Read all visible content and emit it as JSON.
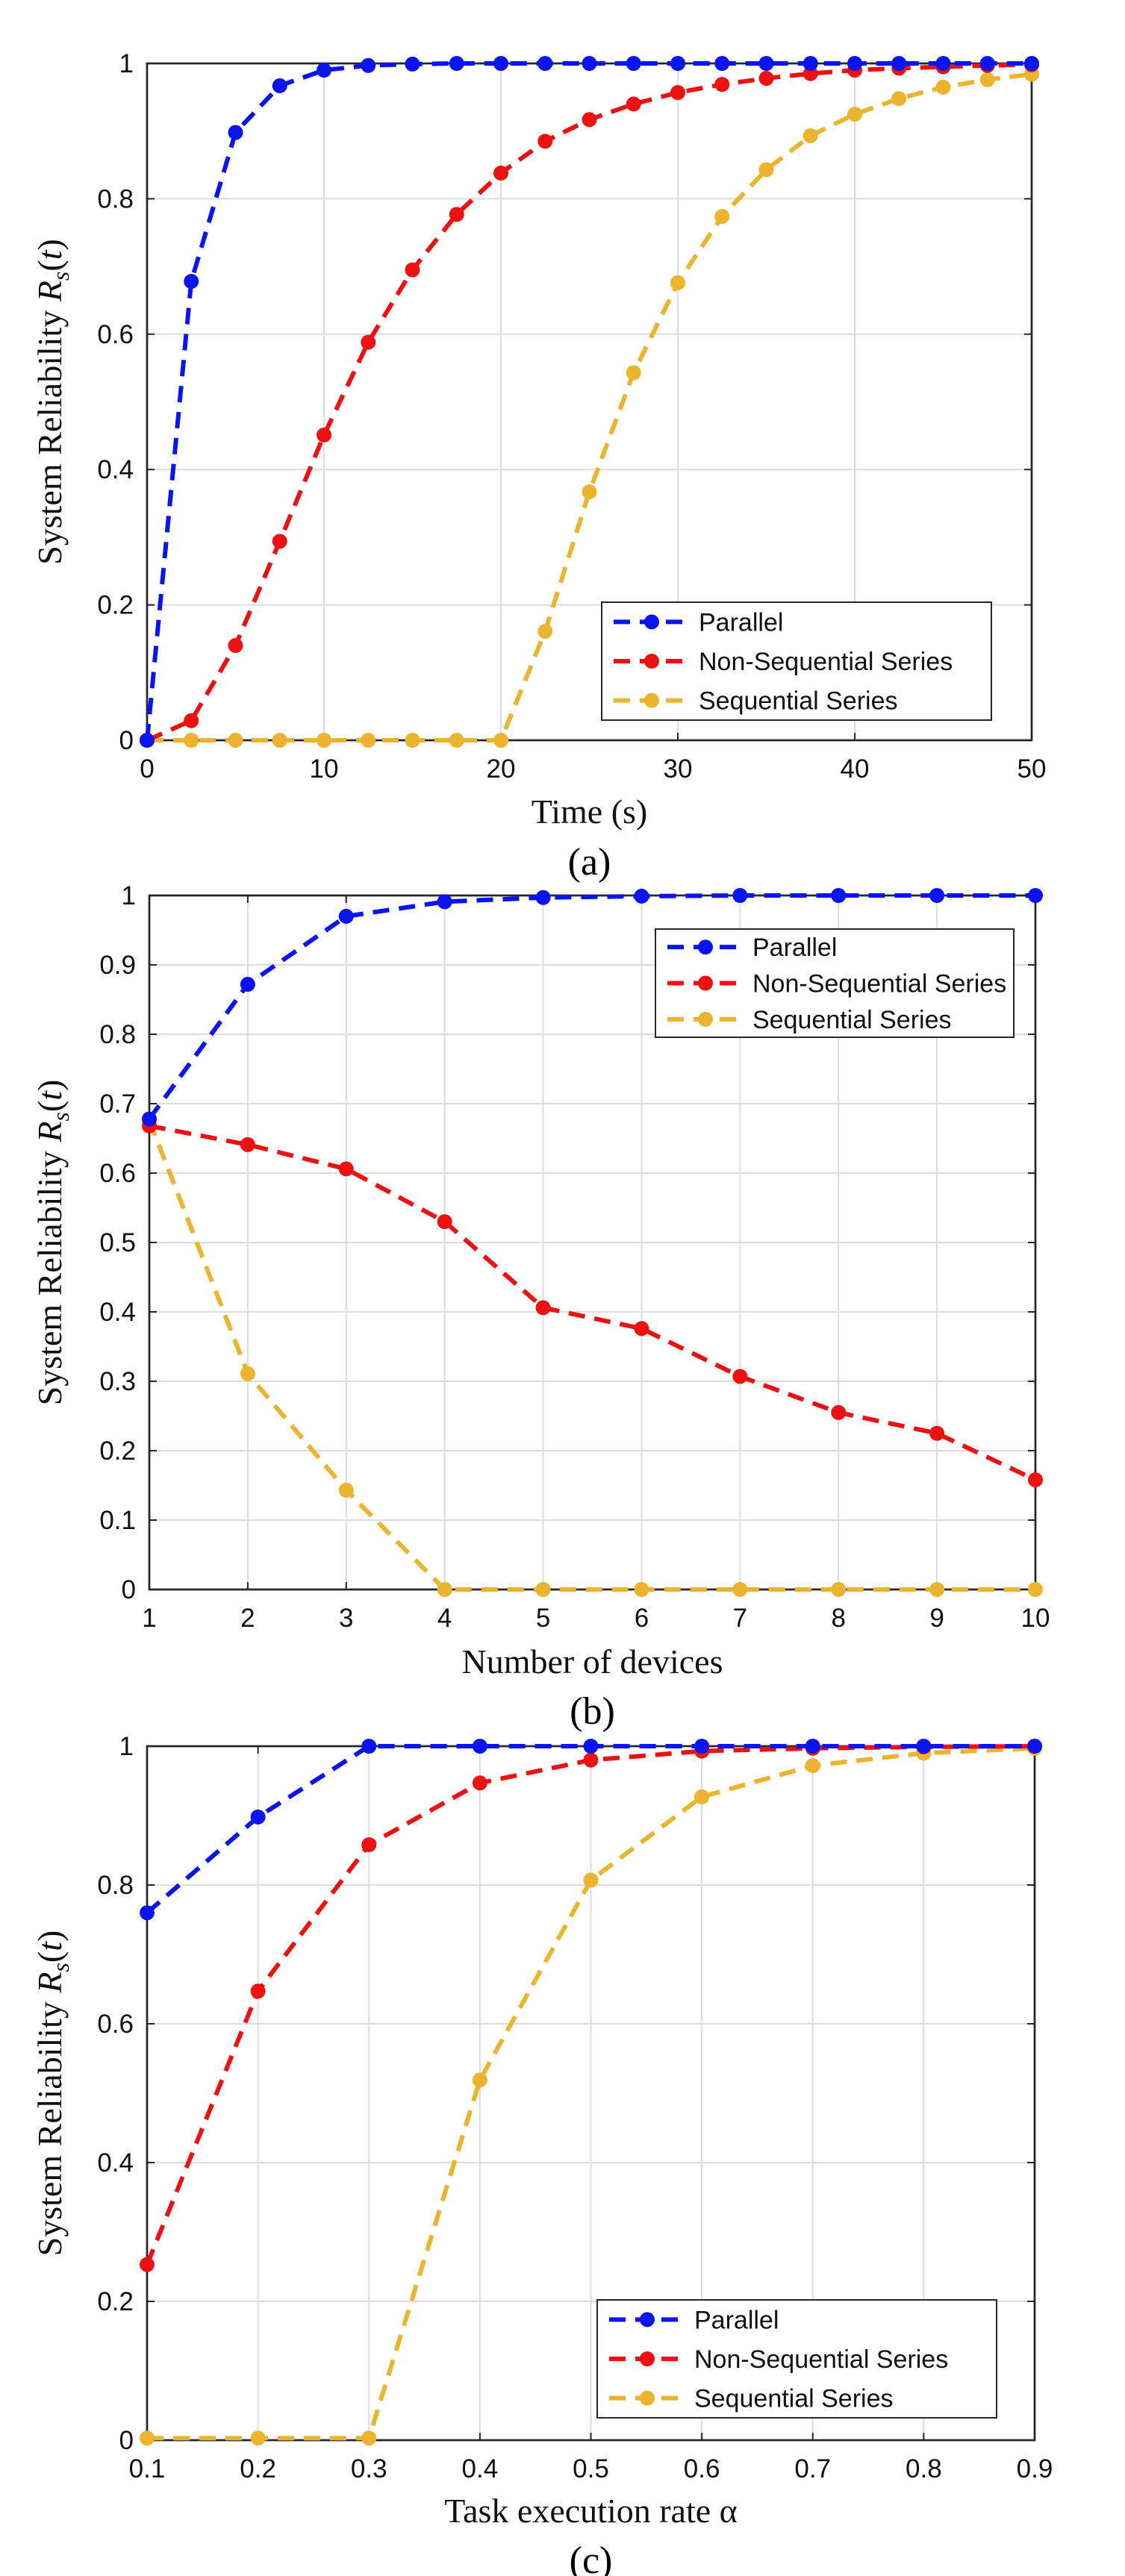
{
  "figure": {
    "panels": [
      "(a)",
      "(b)",
      "(c)"
    ],
    "colors": {
      "parallel": "#0a14f0",
      "non_sequential": "#ee1111",
      "sequential": "#ecb32e"
    }
  },
  "chart_data": [
    {
      "type": "line",
      "panel_label": "(a)",
      "xlabel": "Time (s)",
      "ylabel": "System Reliability R_s(t)",
      "xlim": [
        0,
        50
      ],
      "ylim": [
        0,
        1
      ],
      "xticks": [
        0,
        10,
        20,
        30,
        40,
        50
      ],
      "yticks": [
        0,
        0.2,
        0.4,
        0.6,
        0.8,
        1
      ],
      "ytick_labels": [
        "0",
        "0.2",
        "0.4",
        "0.6",
        "0.8",
        "1"
      ],
      "grid": true,
      "legend_position": "bottom-right",
      "x": [
        0,
        2.5,
        5,
        7.5,
        10,
        12.5,
        15,
        17.5,
        20,
        22.5,
        25,
        27.5,
        30,
        32.5,
        35,
        37.5,
        40,
        42.5,
        45,
        47.5,
        50
      ],
      "series": [
        {
          "name": "Parallel",
          "color": "#0a14f0",
          "values": [
            0,
            0.678,
            0.898,
            0.967,
            0.99,
            0.997,
            0.999,
            1,
            1,
            1,
            1,
            1,
            1,
            1,
            1,
            1,
            1,
            1,
            1,
            1,
            1
          ]
        },
        {
          "name": "Non-Sequential Series",
          "color": "#ee1111",
          "values": [
            0,
            0.029,
            0.14,
            0.294,
            0.451,
            0.588,
            0.695,
            0.777,
            0.838,
            0.885,
            0.917,
            0.94,
            0.957,
            0.969,
            0.978,
            0.985,
            0.99,
            0.993,
            0.995,
            0.997,
            0.998
          ]
        },
        {
          "name": "Sequential Series",
          "color": "#ecb32e",
          "values": [
            0,
            0,
            0,
            0,
            0,
            0,
            0,
            0,
            0,
            0.161,
            0.367,
            0.543,
            0.676,
            0.774,
            0.843,
            0.893,
            0.925,
            0.948,
            0.965,
            0.976,
            0.984
          ]
        }
      ]
    },
    {
      "type": "line",
      "panel_label": "(b)",
      "xlabel": "Number of devices",
      "ylabel": "System Reliability R_s(t)",
      "xlim": [
        1,
        10
      ],
      "ylim": [
        0,
        1
      ],
      "xticks": [
        1,
        2,
        3,
        4,
        5,
        6,
        7,
        8,
        9,
        10
      ],
      "yticks": [
        0,
        0.1,
        0.2,
        0.3,
        0.4,
        0.5,
        0.6,
        0.7,
        0.8,
        0.9,
        1
      ],
      "ytick_labels": [
        "0",
        "0.1",
        "0.2",
        "0.3",
        "0.4",
        "0.5",
        "0.6",
        "0.7",
        "0.8",
        "0.9",
        "1"
      ],
      "grid": true,
      "legend_position": "top-right",
      "x": [
        1,
        2,
        3,
        4,
        5,
        6,
        7,
        8,
        9,
        10
      ],
      "series": [
        {
          "name": "Parallel",
          "color": "#0a14f0",
          "values": [
            0.678,
            0.872,
            0.97,
            0.991,
            0.997,
            0.999,
            1,
            1,
            1,
            1
          ]
        },
        {
          "name": "Non-Sequential Series",
          "color": "#ee1111",
          "values": [
            0.668,
            0.641,
            0.606,
            0.53,
            0.406,
            0.376,
            0.307,
            0.255,
            0.225,
            0.158
          ]
        },
        {
          "name": "Sequential Series",
          "color": "#ecb32e",
          "values": [
            0.676,
            0.311,
            0.143,
            0,
            0,
            0,
            0,
            0,
            0,
            0
          ]
        }
      ]
    },
    {
      "type": "line",
      "panel_label": "(c)",
      "xlabel": "Task execution rate α",
      "ylabel": "System Reliability R_s(t)",
      "xlim": [
        0.1,
        0.9
      ],
      "ylim": [
        0,
        1
      ],
      "xticks": [
        0.1,
        0.2,
        0.3,
        0.4,
        0.5,
        0.6,
        0.7,
        0.8,
        0.9
      ],
      "yticks": [
        0,
        0.2,
        0.4,
        0.6,
        0.8,
        1
      ],
      "ytick_labels": [
        "0",
        "0.2",
        "0.4",
        "0.6",
        "0.8",
        "1"
      ],
      "grid": true,
      "legend_position": "bottom-right",
      "x": [
        0.1,
        0.2,
        0.3,
        0.4,
        0.5,
        0.6,
        0.7,
        0.8,
        0.9
      ],
      "series": [
        {
          "name": "Parallel",
          "color": "#0a14f0",
          "values": [
            0.76,
            0.898,
            1,
            1,
            1,
            1,
            1,
            1,
            1
          ]
        },
        {
          "name": "Non-Sequential Series",
          "color": "#ee1111",
          "values": [
            0.253,
            0.647,
            0.858,
            0.947,
            0.98,
            0.993,
            0.997,
            0.999,
            1
          ]
        },
        {
          "name": "Sequential Series",
          "color": "#ecb32e",
          "values": [
            0.003,
            0.003,
            0.003,
            0.519,
            0.807,
            0.927,
            0.972,
            0.99,
            0.997
          ]
        }
      ]
    }
  ]
}
